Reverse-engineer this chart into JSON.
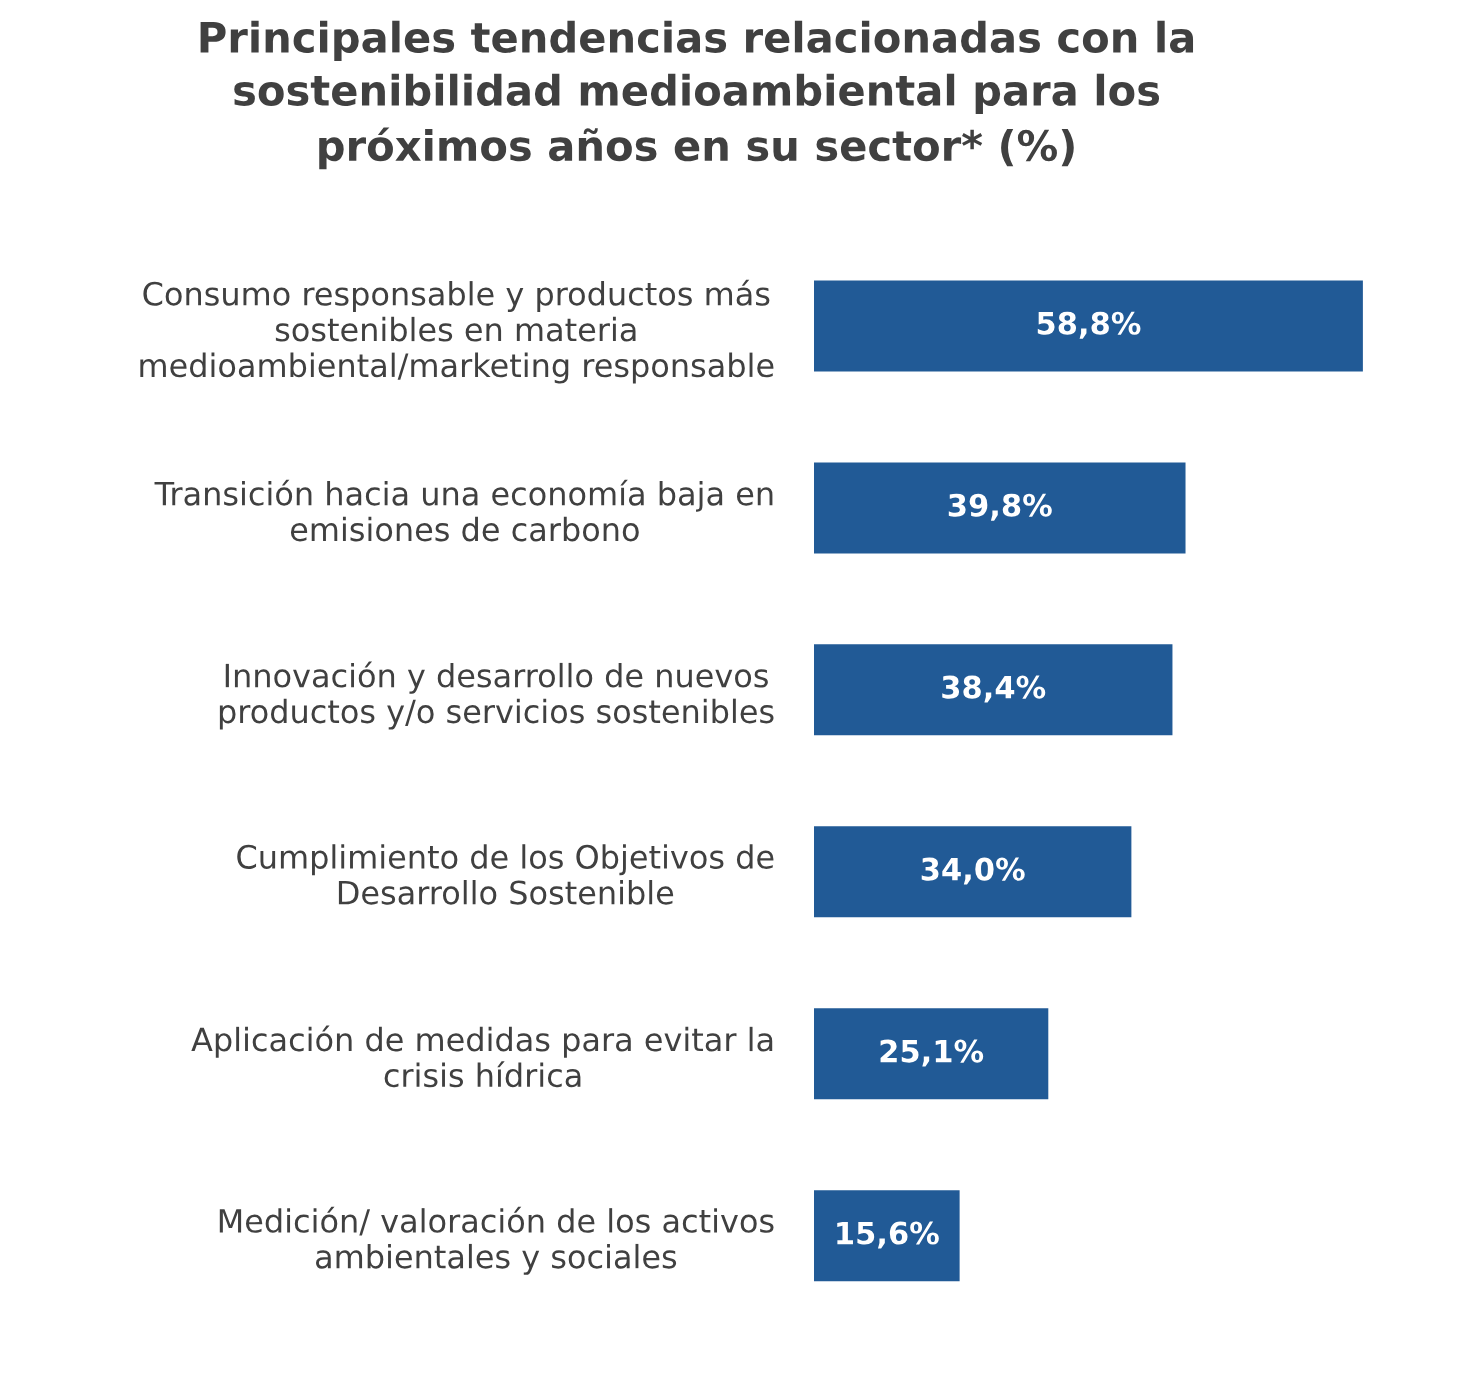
{
  "chart_data": {
    "type": "bar",
    "orientation": "horizontal",
    "title": "Principales tendencias relacionadas con la\nsostenibilidad medioambiental para los\npróximos años en su sector* (%)",
    "categories": [
      "Consumo responsable y productos más\nsostenibles en materia\nmedioambiental/marketing responsable",
      "Transición hacia una economía baja en\nemisiones de carbono",
      "Innovación y desarrollo de nuevos\nproductos y/o servicios sostenibles",
      "Cumplimiento de los Objetivos de\nDesarrollo Sostenible",
      "Aplicación de medidas para evitar la\ncrisis hídrica",
      "Medición/ valoración de los activos\nambientales y sociales"
    ],
    "values": [
      58.8,
      39.8,
      38.4,
      34.0,
      25.1,
      15.6
    ],
    "value_labels": [
      "58,8%",
      "39,8%",
      "38,4%",
      "34,0%",
      "25,1%",
      "15,6%"
    ],
    "color": "#215a96",
    "grid": false,
    "legend": false
  }
}
